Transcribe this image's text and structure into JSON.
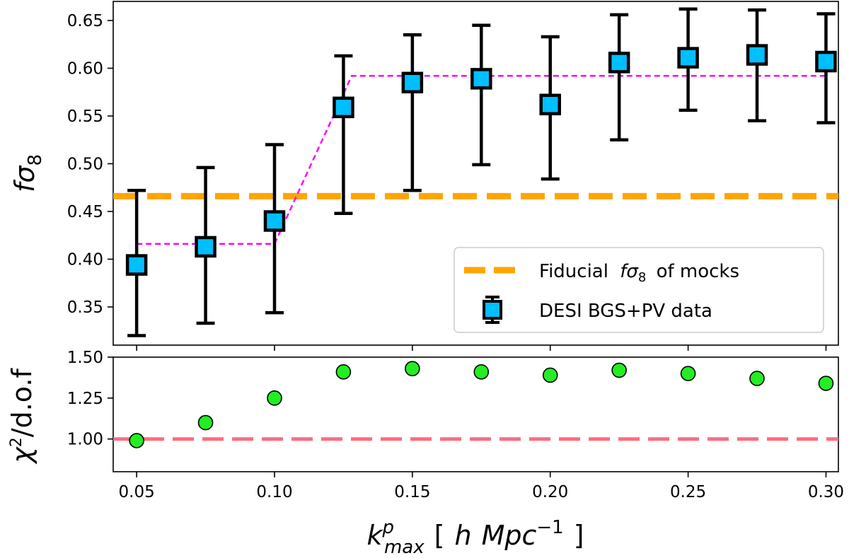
{
  "chart_data": [
    {
      "type": "scatter",
      "panel": "top",
      "ylabel": "fσ8",
      "ylim": [
        0.31,
        0.67
      ],
      "xlim": [
        0.0415,
        0.3045
      ],
      "yticks": [
        0.35,
        0.4,
        0.45,
        0.5,
        0.55,
        0.6,
        0.65
      ],
      "ytick_labels": [
        "0.35",
        "0.40",
        "0.45",
        "0.50",
        "0.55",
        "0.60",
        "0.65"
      ],
      "fiducial": {
        "value": 0.466,
        "label": "Fiducial fσ8 of mocks",
        "color": "#ffa500"
      },
      "series": [
        {
          "name": "DESI BGS+PV data",
          "color": "#00bfff",
          "x": [
            0.05,
            0.075,
            0.1,
            0.125,
            0.15,
            0.175,
            0.2,
            0.225,
            0.25,
            0.275,
            0.3
          ],
          "y": [
            0.394,
            0.413,
            0.44,
            0.559,
            0.585,
            0.589,
            0.562,
            0.606,
            0.611,
            0.614,
            0.607
          ],
          "err_low": [
            0.32,
            0.333,
            0.344,
            0.448,
            0.472,
            0.499,
            0.484,
            0.525,
            0.556,
            0.545,
            0.543
          ],
          "err_high": [
            0.472,
            0.496,
            0.52,
            0.613,
            0.635,
            0.645,
            0.633,
            0.656,
            0.662,
            0.661,
            0.657
          ]
        }
      ],
      "step_line": {
        "color": "#ff00ff",
        "x": [
          0.05,
          0.1,
          0.128,
          0.3
        ],
        "y": [
          0.416,
          0.416,
          0.592,
          0.592
        ]
      },
      "legend": {
        "position": "lower-right",
        "labels": {
          "fiducial": "Fiducial",
          "fiducial_symbol": "fσ",
          "fiducial_sub": "8",
          "fiducial_tail": "of mocks",
          "data": "DESI BGS+PV data"
        }
      }
    },
    {
      "type": "scatter",
      "panel": "bottom",
      "ylabel": "χ²/d.o.f",
      "ylim": [
        0.8,
        1.5
      ],
      "yticks": [
        1.0,
        1.25,
        1.5
      ],
      "ytick_labels": [
        "1.00",
        "1.25",
        "1.50"
      ],
      "reference": {
        "value": 1.0,
        "color": "#ff6b7f"
      },
      "series": [
        {
          "name": "chi2 per dof",
          "color": "#22ee22",
          "x": [
            0.05,
            0.075,
            0.1,
            0.125,
            0.15,
            0.175,
            0.2,
            0.225,
            0.25,
            0.275,
            0.3
          ],
          "y": [
            0.99,
            1.1,
            1.25,
            1.41,
            1.43,
            1.41,
            1.39,
            1.42,
            1.4,
            1.37,
            1.34
          ]
        }
      ],
      "xlabel": "k^p_max [ h Mpc^-1 ]",
      "xticks": [
        0.05,
        0.1,
        0.15,
        0.2,
        0.25,
        0.3
      ],
      "xtick_labels": [
        "0.05",
        "0.10",
        "0.15",
        "0.20",
        "0.25",
        "0.30"
      ]
    }
  ],
  "labels": {
    "top_ylabel_f": "f",
    "top_ylabel_sigma": "σ",
    "top_ylabel_sub": "8",
    "bottom_ylabel_chi": "χ",
    "bottom_ylabel_sup": "2",
    "bottom_ylabel_rest": "/d.o.f",
    "xlabel_k": "k",
    "xlabel_sup": "p",
    "xlabel_sub": "max",
    "xlabel_open": "[",
    "xlabel_h": "h",
    "xlabel_mpc": "Mpc",
    "xlabel_exp": "−1",
    "xlabel_close": "]"
  }
}
